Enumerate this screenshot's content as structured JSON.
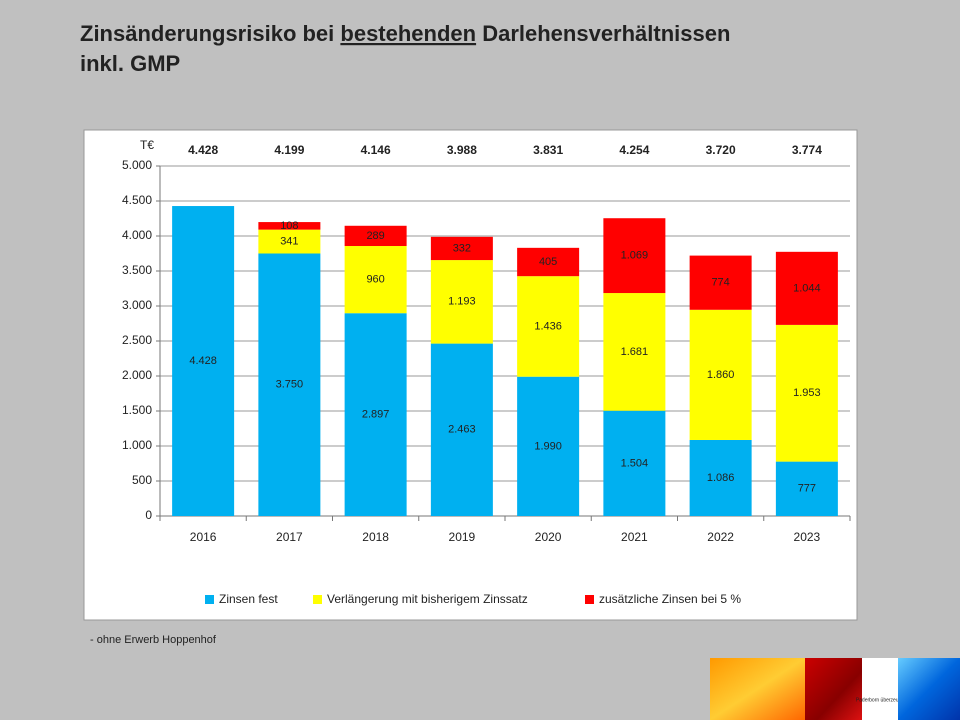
{
  "chart_data": {
    "type": "stacked_bar",
    "title": {
      "start": "Zinsänderungsrisiko bei ",
      "underlined": "bestehenden",
      "end": " Darlehensverhältnissen",
      "line2": "inkl. GMP"
    },
    "y_unit": "T€",
    "categories": [
      "2016",
      "2017",
      "2018",
      "2019",
      "2020",
      "2021",
      "2022",
      "2023"
    ],
    "series": [
      {
        "name": "Zinsen fest",
        "color": "#00b0f0",
        "values": [
          4428,
          3750,
          2897,
          2463,
          1990,
          1504,
          1086,
          777
        ],
        "value_labels": [
          "4.428",
          "3.750",
          "2.897",
          "2.463",
          "1.990",
          "1.504",
          "1.086",
          "777"
        ]
      },
      {
        "name": "Verlängerung mit bisherigem Zinssatz",
        "color": "#ffff00",
        "values": [
          null,
          341,
          960,
          1193,
          1436,
          1681,
          1860,
          1953
        ],
        "value_labels": [
          null,
          "341",
          "960",
          "1.193",
          "1.436",
          "1.681",
          "1.860",
          "1.953"
        ]
      },
      {
        "name": "zusätzliche Zinsen bei 5 %",
        "color": "#ff0000",
        "values": [
          null,
          108,
          289,
          332,
          405,
          1069,
          774,
          1044
        ],
        "value_labels": [
          null,
          "108",
          "289",
          "332",
          "405",
          "1.069",
          "774",
          "1.044"
        ]
      }
    ],
    "totals": {
      "values": [
        4428,
        4199,
        4146,
        3988,
        3831,
        4254,
        3720,
        3774
      ],
      "value_labels": [
        "4.428",
        "4.199",
        "4.146",
        "3.988",
        "3.831",
        "4.254",
        "3.720",
        "3.774"
      ]
    },
    "ylim": [
      0,
      5000
    ],
    "yticks": [
      0,
      500,
      {
        "value": 1000,
        "label": "1.000"
      },
      {
        "value": 1500,
        "label": "1.500"
      },
      {
        "value": 2000,
        "label": "2.000"
      },
      {
        "value": 2500,
        "label": "2.500"
      },
      {
        "value": 3000,
        "label": "3.000"
      },
      {
        "value": 3500,
        "label": "3.500"
      },
      {
        "value": 4000,
        "label": "4.000"
      },
      {
        "value": 4500,
        "label": "4.500"
      },
      {
        "value": 5000,
        "label": "5.000"
      }
    ],
    "grid": true,
    "legend": "bottom",
    "footnote": "- ohne Erwerb Hoppenhof",
    "logo_text": "Paderborn überzeugt."
  }
}
